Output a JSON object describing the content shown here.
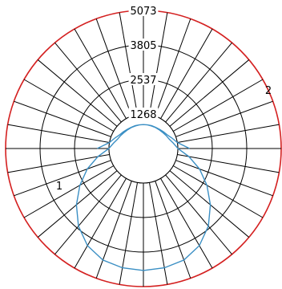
{
  "chart_data": {
    "type": "polar",
    "title": "",
    "radial_ticks": [
      "1268",
      "2537",
      "3805",
      "5073"
    ],
    "r_max": 5073,
    "angle_step_deg": 10,
    "grid": true,
    "colors": {
      "outer_ring": "#d42020",
      "grid": "#000000",
      "curve": "#3a8fc4"
    },
    "series_labels": [
      {
        "text": "1",
        "angle_deg": 235
      },
      {
        "text": "2",
        "angle_deg": 60
      }
    ],
    "series": [
      {
        "angle_deg": [
          0,
          10,
          20,
          30,
          40,
          50,
          60,
          70,
          80,
          90,
          100,
          110,
          120,
          130,
          140,
          150,
          160,
          170,
          180,
          190,
          200,
          210,
          220,
          230,
          240,
          250,
          260,
          270
        ],
        "value": [
          4480,
          4450,
          4360,
          4120,
          3720,
          3220,
          2700,
          2200,
          1700,
          1270,
          1120,
          1010,
          960,
          920,
          900,
          890,
          880,
          880,
          880,
          880,
          890,
          900,
          920,
          960,
          1010,
          1120,
          1270,
          1700
        ]
      }
    ]
  }
}
